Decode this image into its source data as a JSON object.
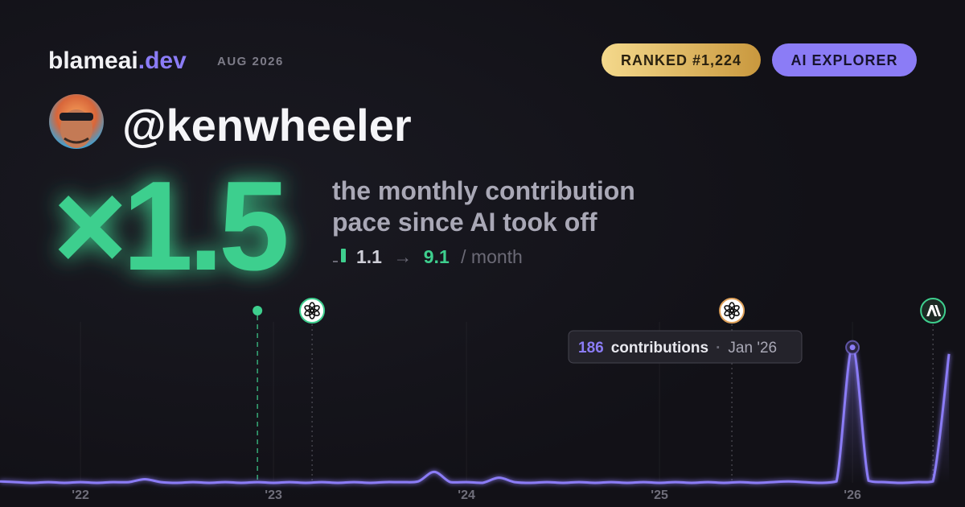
{
  "header": {
    "brand": "blameai",
    "brand_suffix": ".dev",
    "date": "AUG 2026",
    "rank_badge": "RANKED #1,224",
    "tier_badge": "AI EXPLORER"
  },
  "profile": {
    "username": "@kenwheeler"
  },
  "headline": {
    "multiplier": "×1.5",
    "tagline": [
      "the monthly contribution",
      "pace since AI took off"
    ]
  },
  "pace": {
    "from": 1.1,
    "arrow": "→",
    "to": 9.1,
    "unit": "/ month"
  },
  "tooltip": {
    "label": "contributions",
    "date": "Jan '26"
  },
  "chart_data": {
    "type": "line",
    "color": "#8b7cf6",
    "x": [
      2021.583,
      2021.667,
      2021.75,
      2021.833,
      2021.917,
      2022,
      2022.083,
      2022.167,
      2022.25,
      2022.333,
      2022.417,
      2022.5,
      2022.583,
      2022.667,
      2022.75,
      2022.833,
      2022.917,
      2023,
      2023.083,
      2023.167,
      2023.25,
      2023.333,
      2023.417,
      2023.5,
      2023.583,
      2023.667,
      2023.75,
      2023.833,
      2023.917,
      2024,
      2024.083,
      2024.167,
      2024.25,
      2024.333,
      2024.417,
      2024.5,
      2024.583,
      2024.667,
      2024.75,
      2024.833,
      2024.917,
      2025,
      2025.083,
      2025.167,
      2025.25,
      2025.333,
      2025.417,
      2025.5,
      2025.583,
      2025.667,
      2025.75,
      2025.833,
      2025.917,
      2026,
      2026.083,
      2026.167,
      2026.25,
      2026.333,
      2026.417,
      2026.5
    ],
    "values": [
      2,
      1,
      0,
      1,
      0,
      1,
      0,
      1,
      1,
      5,
      1,
      0,
      1,
      0,
      1,
      0,
      1,
      0,
      1,
      0,
      1,
      0,
      1,
      0,
      1,
      1,
      2,
      15,
      1,
      1,
      0,
      7,
      1,
      0,
      1,
      0,
      1,
      0,
      1,
      0,
      1,
      0,
      1,
      0,
      1,
      0,
      1,
      0,
      1,
      2,
      1,
      0,
      2,
      186,
      3,
      1,
      0,
      1,
      2,
      177
    ],
    "xlim": [
      2021.583,
      2026.583
    ],
    "ylim": [
      0,
      200
    ],
    "xticks": [
      {
        "value": 2022,
        "label": "'22"
      },
      {
        "value": 2023,
        "label": "'23"
      },
      {
        "value": 2024,
        "label": "'24"
      },
      {
        "value": 2025,
        "label": "'25"
      },
      {
        "value": 2026,
        "label": "'26"
      }
    ],
    "events": [
      2022.917,
      2023.2,
      2025.375,
      2026.417
    ],
    "grid": true
  }
}
